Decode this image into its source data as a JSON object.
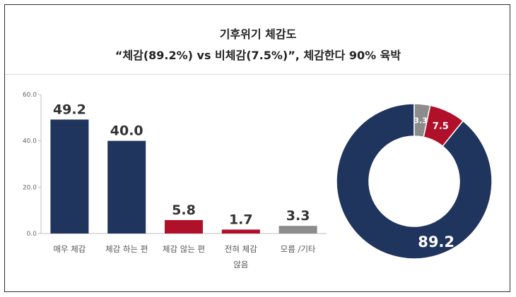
{
  "header": {
    "title": "기후위기 체감도",
    "subtitle": "“체감(89.2%) vs 비체감(7.5%)”, 체감한다 90% 육박"
  },
  "chart_data": [
    {
      "type": "bar",
      "categories": [
        "매우 체감",
        "체감 하는 편",
        "체감 않는 편",
        "전혀 체감 않음",
        "모름 /기타"
      ],
      "category_lines": [
        [
          "매우 체감"
        ],
        [
          "체감 하는 편"
        ],
        [
          "체감 않는 편"
        ],
        [
          "전혀 체감",
          "않음"
        ],
        [
          "모름 /기타"
        ]
      ],
      "values": [
        49.2,
        40.0,
        5.8,
        1.7,
        3.3
      ],
      "value_labels": [
        "49.2",
        "40.0",
        "5.8",
        "1.7",
        "3.3"
      ],
      "colors": [
        "#1f355e",
        "#1f355e",
        "#b0102a",
        "#b0102a",
        "#8c8c8c"
      ],
      "ylim": [
        0,
        60
      ],
      "yticks": [
        "0.0",
        "20.0",
        "40.0",
        "60.0"
      ],
      "ytick_values": [
        0,
        20,
        40,
        60
      ]
    },
    {
      "type": "pie",
      "style": "donut",
      "values": [
        89.2,
        7.5,
        3.3
      ],
      "labels": [
        "89.2",
        "7.5",
        "3.3"
      ],
      "colors": [
        "#1f355e",
        "#b0102a",
        "#8c8c8c"
      ]
    }
  ]
}
